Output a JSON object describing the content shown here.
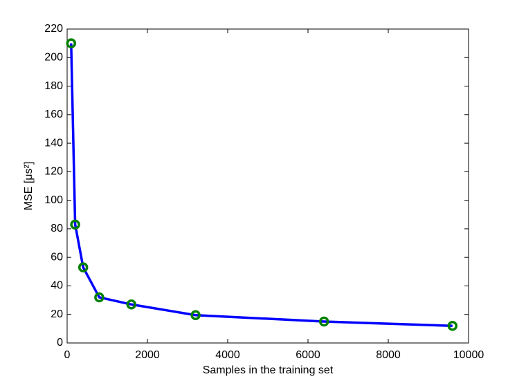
{
  "chart_data": {
    "type": "line",
    "xlabel": "Samples in the training set",
    "ylabel": "MSE [μs²]",
    "x": [
      100,
      200,
      400,
      800,
      1600,
      3200,
      6400,
      9600
    ],
    "values": [
      210,
      83,
      53,
      32,
      27,
      19.5,
      15,
      12
    ],
    "color": "#0000ff",
    "marker_color": "#008000",
    "xlim": [
      0,
      10000
    ],
    "xticks": [
      0,
      2000,
      4000,
      6000,
      8000,
      10000
    ],
    "ylim": [
      0,
      220
    ],
    "yticks": [
      0,
      20,
      40,
      60,
      80,
      100,
      120,
      140,
      160,
      180,
      200,
      220
    ]
  }
}
